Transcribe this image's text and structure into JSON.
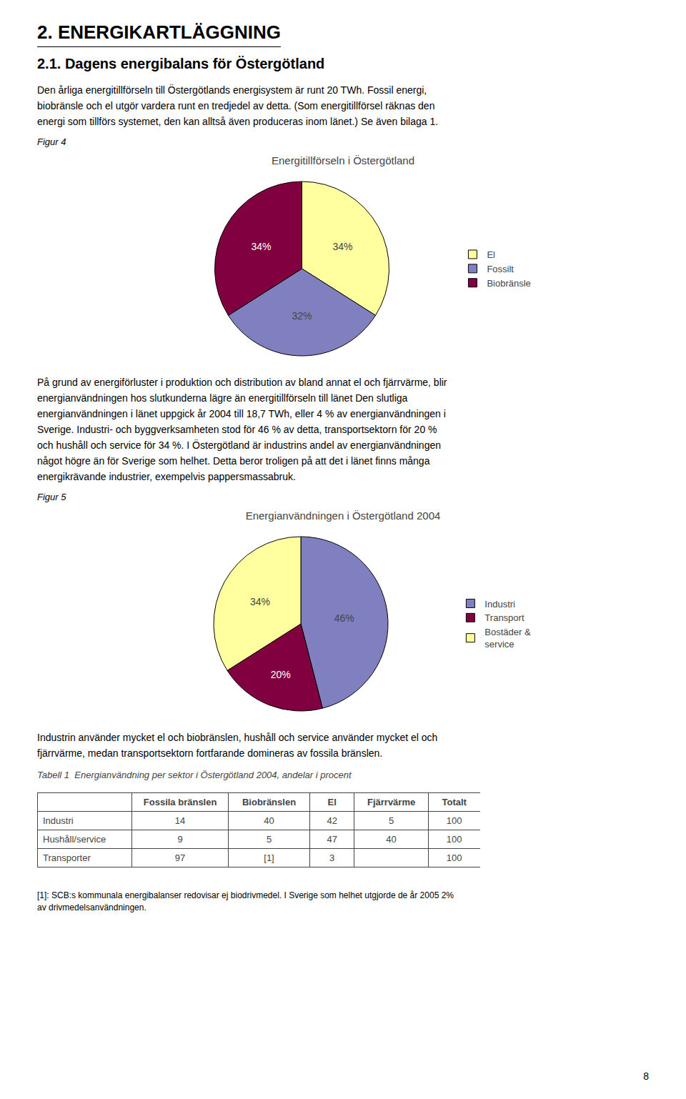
{
  "chart_data": [
    {
      "type": "pie",
      "title": "Energitillförseln i Östergötland",
      "categories": [
        "El",
        "Fossilt",
        "Biobränsle"
      ],
      "values": [
        34,
        32,
        34
      ],
      "colors": [
        "#ffffa0",
        "#8080c0",
        "#800040"
      ],
      "data_labels": true,
      "value_labels": [
        "34%",
        "32%",
        "34%"
      ],
      "legend": "right",
      "annotations": [
        "2. ENERGIKARTLÄGGNING",
        "2.1. Dagens energibalans för Östergötland",
        "Den årliga energitillförseln till Östergötlands energisystem är runt 20 TWh.  Fossil energi,",
        "biobränsle och el utgör vardera runt en tredjedel av detta. (Som energitillförsel räknas den",
        "energi som tillförs systemet, den kan alltså även produceras inom länet.) Se även bilaga 1.",
        "Figur 4"
      ]
    },
    {
      "type": "pie",
      "title": "Energianvändningen i Östergötland 2004",
      "categories": [
        "Industri",
        "Transport",
        "Bostäder &\nservice"
      ],
      "values": [
        46,
        20,
        34
      ],
      "colors": [
        "#8080c0",
        "#800040",
        "#ffffa0"
      ],
      "data_labels": true,
      "value_labels": [
        "46%",
        "20%",
        "34%"
      ],
      "legend": "right",
      "annotations": [
        "På grund av energiförluster i produktion och distribution av bland annat el och fjärrvärme, blir",
        "energianvändningen hos slutkunderna lägre än energitillförseln till länet Den slutliga",
        "energianvändningen i länet uppgick år 2004 till 18,7 TWh, eller 4 % av energianvändningen i",
        "Sverige. Industri- och byggverksamheten stod för 46 % av detta, transportsektorn för 20 %",
        "och hushåll och service för 34 %. I Östergötland är industrins andel av energianvändningen",
        "något högre än för Sverige som helhet. Detta beror troligen på att det i länet finns många",
        "energikrävande industrier, exempelvis pappersmassabruk.",
        "Figur 5"
      ]
    },
    {
      "type": "table",
      "title": "Tabell 1  Energianvändning per sektor i Östergötland 2004, andelar i procent",
      "categories": [
        "Industri",
        "Hushåll/service",
        "Transporter"
      ],
      "series": [
        {
          "name": "Fossila bränslen",
          "values": [
            14,
            9,
            97
          ]
        },
        {
          "name": "Biobränslen",
          "values": [
            40,
            5,
            null
          ],
          "value_labels": [
            "40",
            "5",
            "[1]"
          ]
        },
        {
          "name": "El",
          "values": [
            42,
            47,
            3
          ]
        },
        {
          "name": "Fjärrvärme",
          "values": [
            5,
            40,
            null
          ]
        },
        {
          "name": "Totalt",
          "values": [
            100,
            100,
            100
          ]
        }
      ],
      "annotations": [
        "Industrin använder mycket el och biobränslen, hushåll och service använder mycket el och",
        "fjärrvärme, medan transportsektorn fortfarande domineras av fossila bränslen.",
        "[1]: SCB:s kommunala energibalanser redovisar ej biodrivmedel. I Sverige som helhet utgjorde de år 2005 2%",
        "av drivmedelsanvändningen.",
        "8"
      ]
    }
  ]
}
